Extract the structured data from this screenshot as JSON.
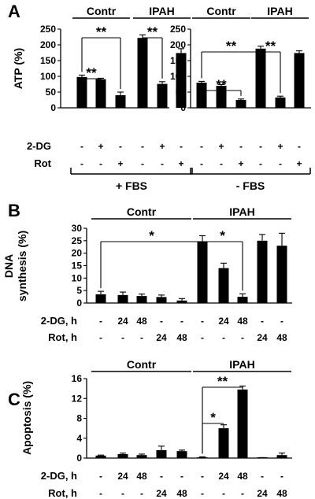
{
  "chart_data": [
    {
      "type": "bar",
      "panel_label": "A",
      "ylabel": "ATP (%)",
      "ylim": [
        0,
        250
      ],
      "yticks": [
        0,
        50,
        100,
        150,
        200,
        250
      ],
      "groups": [
        {
          "label": "Contr",
          "bars": [
            0,
            1,
            2
          ]
        },
        {
          "label": "IPAH",
          "bars": [
            3,
            4,
            5
          ]
        },
        {
          "label": "Contr",
          "bars": [
            6,
            7,
            8
          ]
        },
        {
          "label": "IPAH",
          "bars": [
            9,
            10,
            11
          ]
        }
      ],
      "conditions": [
        {
          "label": "+ FBS",
          "bars": [
            0,
            5
          ]
        },
        {
          "label": "- FBS",
          "bars": [
            6,
            11
          ]
        }
      ],
      "values": [
        98,
        91,
        40,
        222,
        76,
        174,
        80,
        70,
        25,
        188,
        33,
        174
      ],
      "errors": [
        6,
        3,
        10,
        10,
        7,
        14,
        4,
        4,
        3,
        8,
        4,
        7
      ],
      "rows": [
        {
          "label": "2-DG",
          "marks": [
            "-",
            "+",
            "-",
            "-",
            "+",
            "-",
            "-",
            "+",
            "-",
            "-",
            "+",
            "-"
          ]
        },
        {
          "label": "Rot",
          "marks": [
            "-",
            "-",
            "+",
            "-",
            "-",
            "+",
            "-",
            "-",
            "+",
            "-",
            "-",
            "+"
          ]
        }
      ],
      "significance": [
        {
          "from": 0,
          "to": 2,
          "text": "**"
        },
        {
          "from": 0,
          "to": 1,
          "text": "**"
        },
        {
          "from": 3,
          "to": 4,
          "text": "**"
        },
        {
          "from": 6,
          "to": 9,
          "text": "**"
        },
        {
          "from": 6,
          "to": 8,
          "text": "**"
        },
        {
          "from": 9,
          "to": 10,
          "text": "**"
        }
      ]
    },
    {
      "type": "bar",
      "panel_label": "B",
      "ylabel": [
        "DNA",
        "synthesis (%)"
      ],
      "ylim": [
        0,
        30
      ],
      "yticks": [
        0,
        5,
        10,
        15,
        20,
        25,
        30
      ],
      "groups": [
        {
          "label": "Contr",
          "bars": [
            0,
            4
          ]
        },
        {
          "label": "IPAH",
          "bars": [
            5,
            9
          ]
        }
      ],
      "values": [
        3.5,
        3.2,
        2.8,
        2.4,
        1.0,
        24.5,
        14.0,
        2.5,
        25.0,
        23.0
      ],
      "errors": [
        1.2,
        1.2,
        0.8,
        0.8,
        0.8,
        2.5,
        2.0,
        1.2,
        2.5,
        5.0
      ],
      "rows": [
        {
          "label": "2-DG, h",
          "marks": [
            "-",
            "24",
            "48",
            "-",
            "-",
            "-",
            "24",
            "48",
            "-",
            "-"
          ]
        },
        {
          "label": "Rot, h",
          "marks": [
            "-",
            "-",
            "-",
            "24",
            "48",
            "-",
            "-",
            "-",
            "24",
            "48"
          ]
        }
      ],
      "significance": [
        {
          "from": 0,
          "to": 5,
          "text": "*"
        },
        {
          "from": 5,
          "to": 7,
          "text": "*"
        }
      ]
    },
    {
      "type": "bar",
      "panel_label": "C",
      "ylabel": "Apoptosis (%)",
      "ylim": [
        0,
        16
      ],
      "yticks": [
        0,
        4,
        8,
        12,
        16
      ],
      "groups": [
        {
          "label": "Contr",
          "bars": [
            0,
            4
          ]
        },
        {
          "label": "IPAH",
          "bars": [
            5,
            9
          ]
        }
      ],
      "values": [
        0.5,
        0.8,
        0.6,
        1.6,
        1.4,
        0.15,
        6.0,
        13.8,
        0.05,
        0.6
      ],
      "errors": [
        0.1,
        0.2,
        0.2,
        0.8,
        0.2,
        0.1,
        0.7,
        0.7,
        0.05,
        0.4
      ],
      "rows": [
        {
          "label": "2-DG, h",
          "marks": [
            "-",
            "24",
            "48",
            "-",
            "-",
            "-",
            "24",
            "48",
            "-",
            "-"
          ]
        },
        {
          "label": "Rot, h",
          "marks": [
            "-",
            "-",
            "-",
            "24",
            "48",
            "-",
            "-",
            "-",
            "24",
            "48"
          ]
        }
      ],
      "significance": [
        {
          "from": 5,
          "to": 7,
          "text": "**"
        },
        {
          "from": 5,
          "to": 6,
          "text": "*"
        }
      ]
    }
  ]
}
